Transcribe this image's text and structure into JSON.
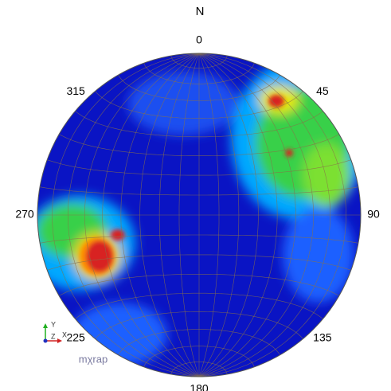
{
  "chart_data": {
    "type": "stereonet",
    "title": "N",
    "angle_ticks": [
      0,
      45,
      90,
      135,
      180,
      225,
      270,
      315
    ]
  },
  "axes_triad": {
    "x": "X",
    "y": "Y",
    "z": "Z"
  },
  "watermark": "mχrap"
}
